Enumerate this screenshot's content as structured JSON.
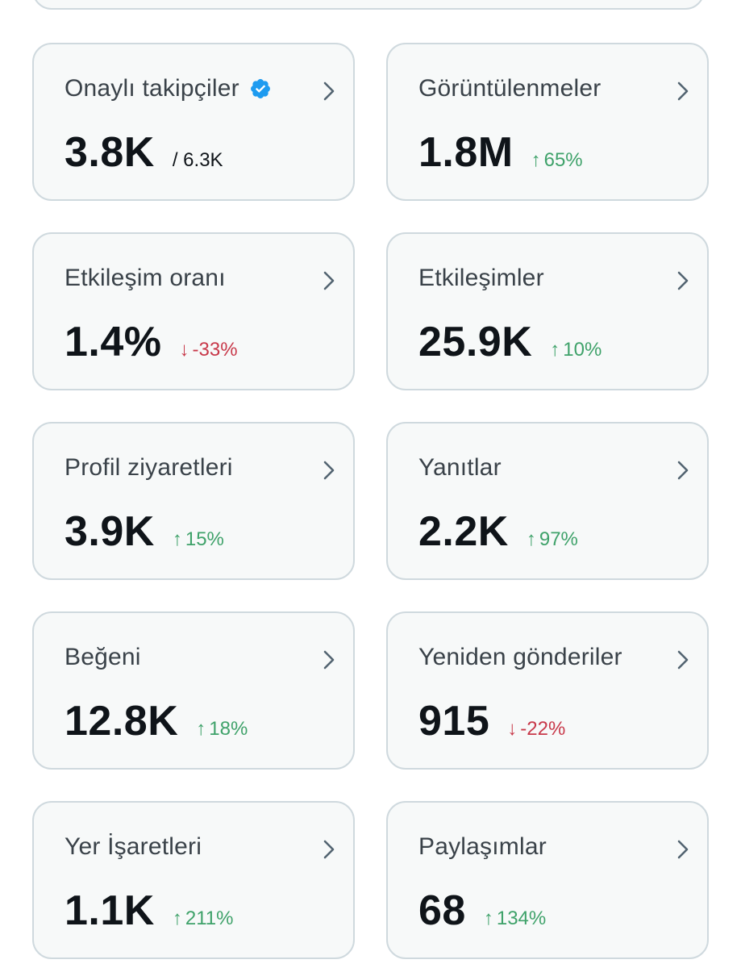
{
  "colors": {
    "card_bg": "#f7f9f9",
    "card_border": "#cfd9de",
    "value_text": "#0f1419",
    "title_text": "#3a4249",
    "positive": "#3fa26a",
    "negative": "#c8394a",
    "verified_badge": "#1d9bf0"
  },
  "metrics": [
    {
      "title": "Onaylı takipçiler",
      "value": "3.8K",
      "sub": "/ 6.3K",
      "verified_icon": "verified-badge-icon"
    },
    {
      "title": "Görüntülenmeler",
      "value": "1.8M",
      "change_arrow": "↑",
      "change": "65%",
      "direction": "up"
    },
    {
      "title": "Etkileşim oranı",
      "value": "1.4%",
      "change_arrow": "↓",
      "change": "-33%",
      "direction": "down"
    },
    {
      "title": "Etkileşimler",
      "value": "25.9K",
      "change_arrow": "↑",
      "change": "10%",
      "direction": "up"
    },
    {
      "title": "Profil ziyaretleri",
      "value": "3.9K",
      "change_arrow": "↑",
      "change": "15%",
      "direction": "up"
    },
    {
      "title": "Yanıtlar",
      "value": "2.2K",
      "change_arrow": "↑",
      "change": "97%",
      "direction": "up"
    },
    {
      "title": "Beğeni",
      "value": "12.8K",
      "change_arrow": "↑",
      "change": "18%",
      "direction": "up"
    },
    {
      "title": "Yeniden gönderiler",
      "value": "915",
      "change_arrow": "↓",
      "change": "-22%",
      "direction": "down"
    },
    {
      "title": "Yer İşaretleri",
      "value": "1.1K",
      "change_arrow": "↑",
      "change": "211%",
      "direction": "up"
    },
    {
      "title": "Paylaşımlar",
      "value": "68",
      "change_arrow": "↑",
      "change": "134%",
      "direction": "up"
    }
  ]
}
